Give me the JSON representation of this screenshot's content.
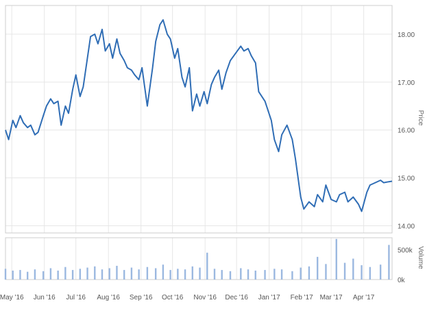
{
  "colors": {
    "price_line": "#2f6db5",
    "volume_bar": "#9bb8e0",
    "grid": "#e6e6e6"
  },
  "chart_data": [
    {
      "type": "line",
      "title": "",
      "xlabel": "",
      "ylabel": "Price",
      "ylim": [
        13.85,
        18.6
      ],
      "yticks": [
        "14.00",
        "15.00",
        "16.00",
        "17.00",
        "18.00"
      ],
      "grid": true,
      "x_unit": "date",
      "xlim": [
        "2016-04-25",
        "2017-04-28"
      ],
      "series": [
        {
          "x": [
            "2016-04-25",
            "2016-04-28",
            "2016-05-02",
            "2016-05-05",
            "2016-05-09",
            "2016-05-12",
            "2016-05-16",
            "2016-05-19",
            "2016-05-23",
            "2016-05-26",
            "2016-05-31",
            "2016-06-03",
            "2016-06-07",
            "2016-06-10",
            "2016-06-14",
            "2016-06-17",
            "2016-06-21",
            "2016-06-24",
            "2016-06-28",
            "2016-07-01",
            "2016-07-05",
            "2016-07-08",
            "2016-07-12",
            "2016-07-15",
            "2016-07-19",
            "2016-07-22",
            "2016-07-26",
            "2016-07-29",
            "2016-08-02",
            "2016-08-05",
            "2016-08-09",
            "2016-08-12",
            "2016-08-16",
            "2016-08-19",
            "2016-08-23",
            "2016-08-26",
            "2016-08-30",
            "2016-09-02",
            "2016-09-07",
            "2016-09-12",
            "2016-09-15",
            "2016-09-19",
            "2016-09-22",
            "2016-09-26",
            "2016-09-29",
            "2016-10-03",
            "2016-10-06",
            "2016-10-10",
            "2016-10-13",
            "2016-10-17",
            "2016-10-20",
            "2016-10-24",
            "2016-10-27",
            "2016-10-31",
            "2016-11-03",
            "2016-11-07",
            "2016-11-10",
            "2016-11-14",
            "2016-11-17",
            "2016-11-21",
            "2016-11-25",
            "2016-11-30",
            "2016-12-05",
            "2016-12-08",
            "2016-12-12",
            "2016-12-15",
            "2016-12-19",
            "2016-12-22",
            "2016-12-28",
            "2017-01-03",
            "2017-01-06",
            "2017-01-10",
            "2017-01-13",
            "2017-01-18",
            "2017-01-23",
            "2017-01-26",
            "2017-01-31",
            "2017-02-03",
            "2017-02-08",
            "2017-02-13",
            "2017-02-16",
            "2017-02-21",
            "2017-02-24",
            "2017-03-01",
            "2017-03-06",
            "2017-03-09",
            "2017-03-14",
            "2017-03-17",
            "2017-03-22",
            "2017-03-27",
            "2017-03-30",
            "2017-04-04",
            "2017-04-07",
            "2017-04-12",
            "2017-04-17",
            "2017-04-20",
            "2017-04-25",
            "2017-04-28"
          ],
          "y": [
            16.0,
            15.8,
            16.2,
            16.05,
            16.3,
            16.15,
            16.05,
            16.1,
            15.9,
            15.95,
            16.3,
            16.5,
            16.65,
            16.55,
            16.6,
            16.1,
            16.5,
            16.35,
            16.85,
            17.15,
            16.7,
            16.9,
            17.5,
            17.95,
            18.0,
            17.8,
            18.1,
            17.65,
            17.8,
            17.5,
            17.9,
            17.6,
            17.45,
            17.3,
            17.25,
            17.15,
            17.05,
            17.3,
            16.5,
            17.3,
            17.85,
            18.2,
            18.3,
            18.0,
            17.9,
            17.5,
            17.7,
            17.1,
            16.9,
            17.3,
            16.4,
            16.75,
            16.5,
            16.8,
            16.55,
            16.95,
            17.1,
            17.25,
            16.85,
            17.2,
            17.45,
            17.6,
            17.75,
            17.65,
            17.7,
            17.55,
            17.4,
            16.8,
            16.6,
            16.2,
            15.8,
            15.55,
            15.9,
            16.1,
            15.8,
            15.4,
            14.6,
            14.35,
            14.5,
            14.4,
            14.65,
            14.5,
            14.85,
            14.55,
            14.5,
            14.65,
            14.7,
            14.5,
            14.6,
            14.45,
            14.3,
            14.7,
            14.85,
            14.9,
            14.95,
            14.9,
            14.92,
            14.93
          ]
        }
      ]
    },
    {
      "type": "bar",
      "title": "",
      "ylabel": "Volume",
      "ylim": [
        0,
        700000
      ],
      "yticks": [
        "0k",
        "500k"
      ],
      "x_unit": "date",
      "xlim": [
        "2016-04-25",
        "2017-04-28"
      ],
      "xticks": [
        "May '16",
        "Jun '16",
        "Jul '16",
        "Aug '16",
        "Sep '16",
        "Oct '16",
        "Nov '16",
        "Dec '16",
        "Jan '17",
        "Feb '17",
        "Mar '17",
        "Apr '17"
      ],
      "series": [
        {
          "x": [
            "2016-04-25",
            "2016-05-02",
            "2016-05-09",
            "2016-05-16",
            "2016-05-23",
            "2016-05-31",
            "2016-06-07",
            "2016-06-14",
            "2016-06-21",
            "2016-06-28",
            "2016-07-05",
            "2016-07-12",
            "2016-07-19",
            "2016-07-26",
            "2016-08-02",
            "2016-08-09",
            "2016-08-16",
            "2016-08-23",
            "2016-08-30",
            "2016-09-07",
            "2016-09-15",
            "2016-09-22",
            "2016-09-29",
            "2016-10-06",
            "2016-10-13",
            "2016-10-20",
            "2016-10-27",
            "2016-11-03",
            "2016-11-10",
            "2016-11-17",
            "2016-11-25",
            "2016-12-05",
            "2016-12-12",
            "2016-12-19",
            "2016-12-28",
            "2017-01-06",
            "2017-01-13",
            "2017-01-23",
            "2017-01-31",
            "2017-02-08",
            "2017-02-16",
            "2017-02-24",
            "2017-03-06",
            "2017-03-14",
            "2017-03-22",
            "2017-03-30",
            "2017-04-07",
            "2017-04-17",
            "2017-04-25"
          ],
          "y": [
            180000,
            150000,
            160000,
            130000,
            170000,
            140000,
            190000,
            150000,
            210000,
            160000,
            180000,
            200000,
            220000,
            170000,
            190000,
            230000,
            160000,
            200000,
            170000,
            210000,
            190000,
            250000,
            160000,
            180000,
            170000,
            220000,
            200000,
            450000,
            180000,
            160000,
            140000,
            190000,
            170000,
            150000,
            160000,
            180000,
            170000,
            140000,
            200000,
            220000,
            380000,
            260000,
            680000,
            280000,
            350000,
            240000,
            210000,
            250000,
            580000
          ]
        }
      ]
    }
  ]
}
